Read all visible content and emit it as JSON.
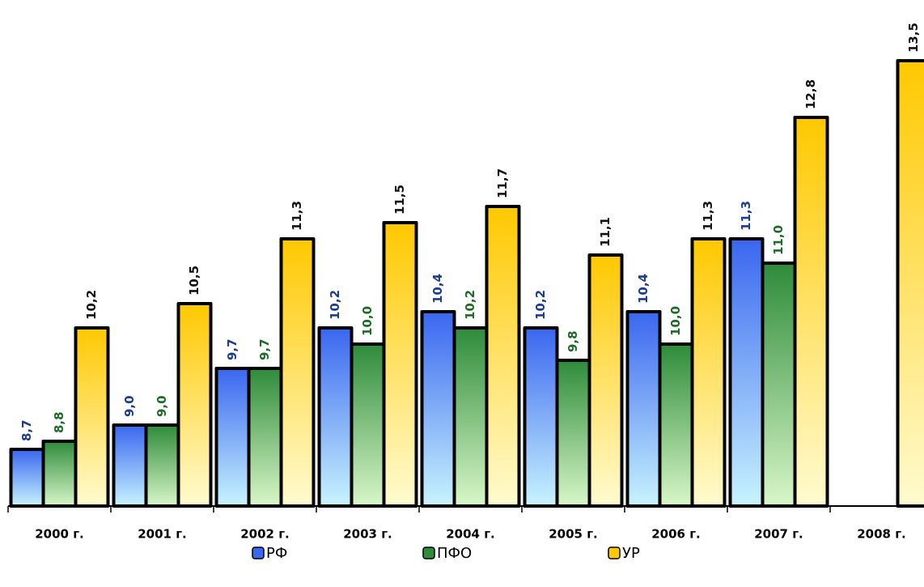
{
  "chart_data": {
    "type": "bar",
    "categories": [
      "2000 г.",
      "2001 г.",
      "2002 г.",
      "2003 г.",
      "2004 г.",
      "2005 г.",
      "2006 г.",
      "2007 г.",
      "2008 г."
    ],
    "series": [
      {
        "name": "РФ",
        "color": "#3a66f0",
        "values": [
          8.7,
          9.0,
          9.7,
          10.2,
          10.4,
          10.2,
          10.4,
          11.3,
          null
        ],
        "value_labels": [
          "8,7",
          "9,0",
          "9,7",
          "10,2",
          "10,4",
          "10,2",
          "10,4",
          "11,3",
          null
        ]
      },
      {
        "name": "ПФО",
        "color": "#2e8b3a",
        "values": [
          8.8,
          9.0,
          9.7,
          10.0,
          10.2,
          9.8,
          10.0,
          11.0,
          null
        ],
        "value_labels": [
          "8,8",
          "9,0",
          "9,7",
          "10,0",
          "10,2",
          "9,8",
          "10,0",
          "11,0",
          null
        ]
      },
      {
        "name": "УР",
        "color": "#ffc800",
        "values": [
          10.2,
          10.5,
          11.3,
          11.5,
          11.7,
          11.1,
          11.3,
          12.8,
          13.5
        ],
        "value_labels": [
          "10,2",
          "10,5",
          "11,3",
          "11,5",
          "11,7",
          "11,1",
          "11,3",
          "12,8",
          "13,5"
        ]
      }
    ],
    "ylim": [
      8,
      14
    ],
    "legend": "bottom"
  }
}
